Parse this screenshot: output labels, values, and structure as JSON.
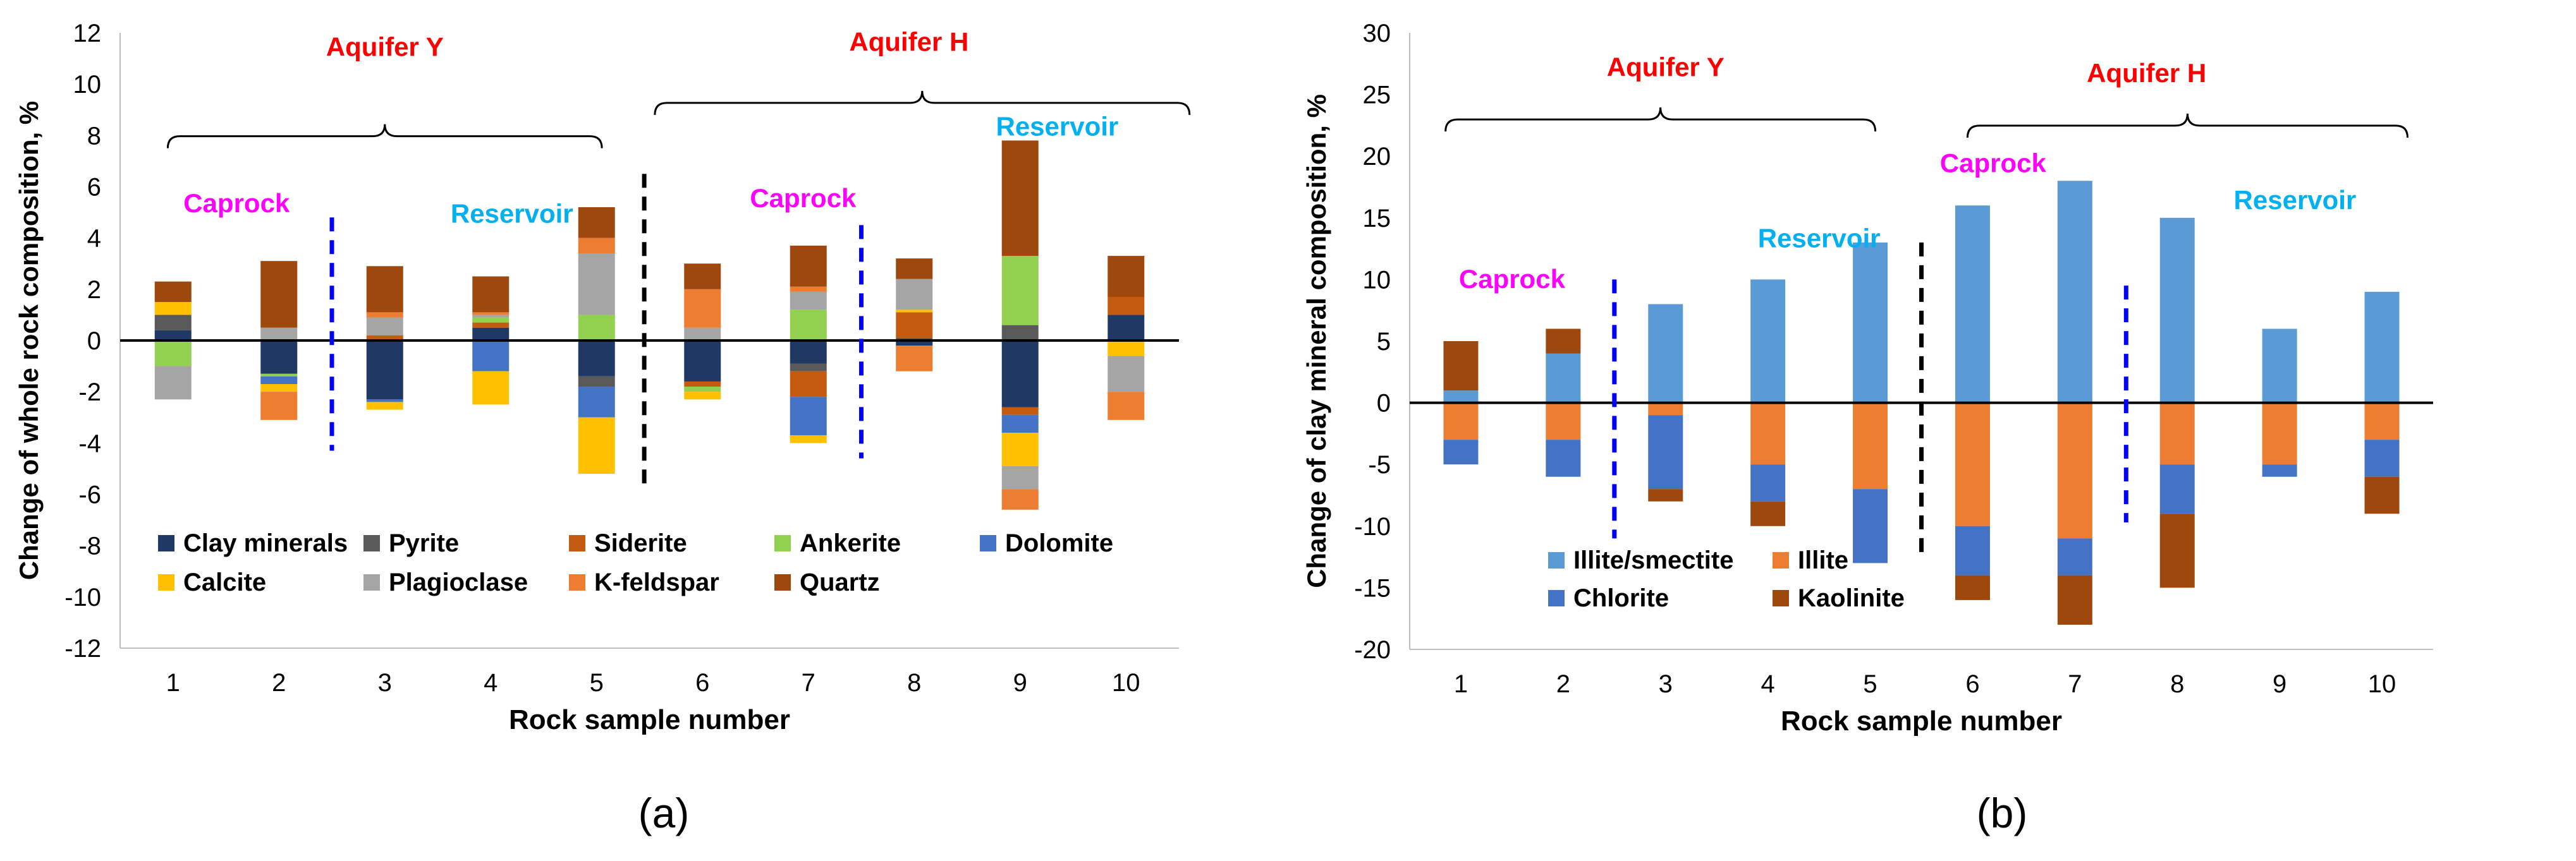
{
  "chart_data": [
    {
      "type": "bar",
      "stacked": true,
      "panel_label": "(a)",
      "title": "",
      "xlabel": "Rock sample number",
      "ylabel": "Change of whole rock composition, %",
      "ylim": [
        -12,
        12
      ],
      "ytick_step": 2,
      "categories": [
        "1",
        "2",
        "3",
        "4",
        "5",
        "6",
        "7",
        "8",
        "9",
        "10"
      ],
      "legend_position": "bottom",
      "series": [
        {
          "name": "Clay minerals",
          "color": "#203864",
          "values": [
            0.4,
            -1.3,
            -2.3,
            0.5,
            -1.4,
            -1.6,
            -0.9,
            -0.2,
            -2.6,
            1.0
          ]
        },
        {
          "name": "Pyrite",
          "color": "#595959",
          "values": [
            0.6,
            0.0,
            0.0,
            0.0,
            -0.4,
            0.0,
            -0.3,
            0.1,
            0.6,
            0.0
          ]
        },
        {
          "name": "Siderite",
          "color": "#C55A11",
          "values": [
            0.0,
            0.0,
            0.2,
            0.2,
            0.0,
            -0.2,
            -1.0,
            1.0,
            -0.3,
            0.7
          ]
        },
        {
          "name": "Ankerite",
          "color": "#92D050",
          "values": [
            -1.0,
            -0.1,
            0.0,
            0.2,
            1.0,
            -0.2,
            1.2,
            0.0,
            2.7,
            0.0
          ]
        },
        {
          "name": "Dolomite",
          "color": "#4472C4",
          "values": [
            0.0,
            -0.3,
            -0.1,
            -1.2,
            -1.2,
            0.0,
            -1.5,
            0.0,
            -0.7,
            0.0
          ]
        },
        {
          "name": "Calcite",
          "color": "#FFC000",
          "values": [
            0.5,
            -0.3,
            -0.3,
            -1.3,
            -2.2,
            -0.3,
            -0.3,
            0.1,
            -1.3,
            -0.6
          ]
        },
        {
          "name": "Plagioclase",
          "color": "#A5A5A5",
          "values": [
            -1.3,
            0.5,
            0.7,
            0.1,
            2.4,
            0.5,
            0.7,
            1.2,
            -0.9,
            -1.4
          ]
        },
        {
          "name": "K-feldspar",
          "color": "#ED7D31",
          "values": [
            0.0,
            -1.1,
            0.2,
            0.1,
            0.6,
            1.5,
            0.2,
            -1.0,
            -0.8,
            -1.1
          ]
        },
        {
          "name": "Quartz",
          "color": "#9E480E",
          "values": [
            0.8,
            2.6,
            1.8,
            1.4,
            1.2,
            1.0,
            1.6,
            0.8,
            4.5,
            1.6
          ]
        }
      ],
      "annotations": [
        {
          "text": "Aquifer Y",
          "color": "#FF0000",
          "x": 3,
          "y": 11.1
        },
        {
          "text": "Aquifer H",
          "color": "#FF0000",
          "x": 7.95,
          "y": 11.3
        },
        {
          "text": "Caprock",
          "color": "#FF00FF",
          "x": 1.6,
          "y": 5.0
        },
        {
          "text": "Reservoir",
          "color": "#00B0F0",
          "x": 4.2,
          "y": 4.6
        },
        {
          "text": "Caprock",
          "color": "#FF00FF",
          "x": 6.95,
          "y": 5.2
        },
        {
          "text": "Reservoir",
          "color": "#00B0F0",
          "x": 9.35,
          "y": 8.0
        }
      ],
      "braces": [
        {
          "x_from": 0.95,
          "x_to": 5.05,
          "y": 7.5
        },
        {
          "x_from": 5.55,
          "x_to": 10.6,
          "y": 8.8
        }
      ],
      "dividers": [
        {
          "x": 5.45,
          "y_from": -5.9,
          "y_to": 6.5,
          "color": "#000000"
        },
        {
          "x": 2.5,
          "y_from": -4.3,
          "y_to": 4.8,
          "color": "#0000FF"
        },
        {
          "x": 7.5,
          "y_from": -4.6,
          "y_to": 4.5,
          "color": "#0000FF"
        }
      ]
    },
    {
      "type": "bar",
      "stacked": true,
      "panel_label": "(b)",
      "title": "",
      "xlabel": "Rock sample number",
      "ylabel": "Change of clay mineral composition, %",
      "ylim": [
        -20,
        30
      ],
      "ytick_step": 5,
      "categories": [
        "1",
        "2",
        "3",
        "4",
        "5",
        "6",
        "7",
        "8",
        "9",
        "10"
      ],
      "legend_position": "bottom-left",
      "series": [
        {
          "name": "Illite/smectite",
          "color": "#5B9BD5",
          "values": [
            1,
            4,
            8,
            10,
            13,
            16,
            18,
            15,
            6,
            9
          ]
        },
        {
          "name": "Illite",
          "color": "#ED7D31",
          "values": [
            -3,
            -3,
            -1,
            -5,
            -7,
            -10,
            -11,
            -5,
            -5,
            -3
          ]
        },
        {
          "name": "Chlorite",
          "color": "#4472C4",
          "values": [
            -2,
            -3,
            -6,
            -3,
            -6,
            -4,
            -3,
            -4,
            -1,
            -3
          ]
        },
        {
          "name": "Kaolinite",
          "color": "#9E480E",
          "values": [
            4,
            2,
            -1,
            -2,
            0,
            -2,
            -4,
            -6,
            0,
            -3
          ]
        }
      ],
      "annotations": [
        {
          "text": "Aquifer Y",
          "color": "#FF0000",
          "x": 3,
          "y": 26.5
        },
        {
          "text": "Aquifer H",
          "color": "#FF0000",
          "x": 7.7,
          "y": 26.0
        },
        {
          "text": "Caprock",
          "color": "#FF00FF",
          "x": 1.5,
          "y": 9.3
        },
        {
          "text": "Reservoir",
          "color": "#00B0F0",
          "x": 4.5,
          "y": 12.6
        },
        {
          "text": "Caprock",
          "color": "#FF00FF",
          "x": 6.2,
          "y": 18.7
        },
        {
          "text": "Reservoir",
          "color": "#00B0F0",
          "x": 9.15,
          "y": 15.7
        }
      ],
      "braces": [
        {
          "x_from": 0.85,
          "x_to": 5.05,
          "y": 22
        },
        {
          "x_from": 5.95,
          "x_to": 10.25,
          "y": 21.5
        }
      ],
      "dividers": [
        {
          "x": 5.5,
          "y_from": -12.5,
          "y_to": 13,
          "color": "#000000"
        },
        {
          "x": 2.5,
          "y_from": -11,
          "y_to": 10,
          "color": "#0000FF"
        },
        {
          "x": 7.5,
          "y_from": -9.7,
          "y_to": 9.5,
          "color": "#0000FF"
        }
      ]
    }
  ]
}
